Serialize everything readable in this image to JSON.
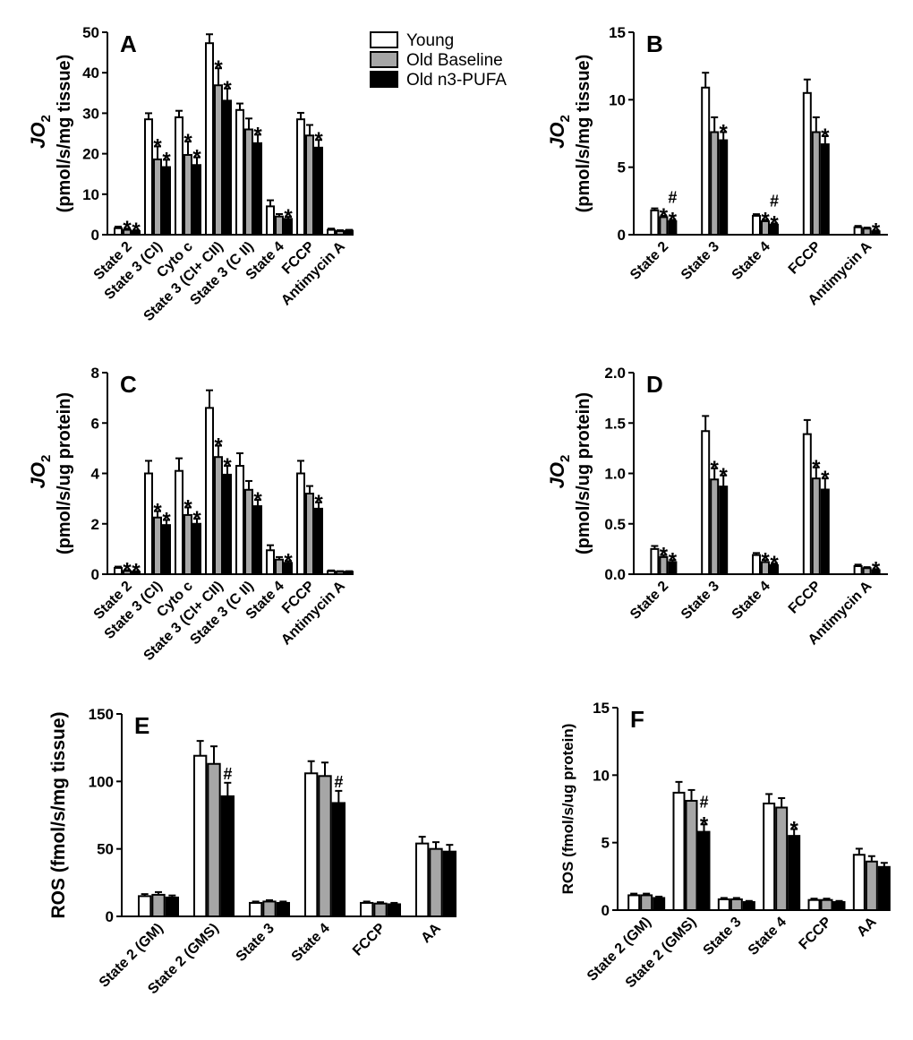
{
  "legend": {
    "entries": [
      {
        "name": "Young",
        "fill": "#ffffff"
      },
      {
        "name": "Old Baseline",
        "fill": "#a6a6a6"
      },
      {
        "name": "Old n3-PUFA",
        "fill": "#000000"
      }
    ]
  },
  "chart_data": [
    {
      "id": "A",
      "type": "bar",
      "panel_label": "A",
      "ylabel_main": "JO",
      "ylabel_sub": "2",
      "ylabel_units": "(pmol/s/mg tissue)",
      "ylim": [
        0,
        50
      ],
      "yticks": [
        0,
        10,
        20,
        30,
        40,
        50
      ],
      "categories": [
        "State 2",
        "State 3 (CI)",
        "Cyto c",
        "State 3 (CI+ CII)",
        "State 3 (C II)",
        "State 4",
        "FCCP",
        "Antimycin A"
      ],
      "series": [
        {
          "name": "Young",
          "values": [
            1.6,
            28.5,
            29.0,
            47.3,
            30.8,
            7.0,
            28.5,
            1.2
          ],
          "errors": [
            0.4,
            1.5,
            1.6,
            2.2,
            1.6,
            1.5,
            1.6,
            0.3
          ]
        },
        {
          "name": "Old Baseline",
          "values": [
            1.2,
            18.6,
            19.7,
            36.9,
            26.0,
            4.5,
            24.5,
            0.9
          ],
          "errors": [
            0.3,
            3.2,
            3.3,
            4.2,
            2.7,
            0.6,
            2.6,
            0.2
          ]
        },
        {
          "name": "Old n3-PUFA",
          "values": [
            0.9,
            16.7,
            17.2,
            33.1,
            22.6,
            3.9,
            21.5,
            1.0
          ],
          "errors": [
            0.2,
            1.8,
            1.9,
            3.0,
            2.1,
            0.5,
            1.9,
            0.2
          ]
        }
      ],
      "annotations": [
        {
          "cat": 0,
          "series": 1,
          "text": "*"
        },
        {
          "cat": 0,
          "series": 2,
          "text": "*"
        },
        {
          "cat": 1,
          "series": 1,
          "text": "*"
        },
        {
          "cat": 1,
          "series": 2,
          "text": "*"
        },
        {
          "cat": 2,
          "series": 1,
          "text": "*"
        },
        {
          "cat": 2,
          "series": 2,
          "text": "*"
        },
        {
          "cat": 3,
          "series": 1,
          "text": "*"
        },
        {
          "cat": 3,
          "series": 2,
          "text": "*"
        },
        {
          "cat": 4,
          "series": 2,
          "text": "*"
        },
        {
          "cat": 5,
          "series": 2,
          "text": "*"
        },
        {
          "cat": 6,
          "series": 2,
          "text": "*"
        }
      ]
    },
    {
      "id": "B",
      "type": "bar",
      "panel_label": "B",
      "ylabel_main": "JO",
      "ylabel_sub": "2",
      "ylabel_units": "(pmol/s/mg tissue)",
      "ylim": [
        0,
        15
      ],
      "yticks": [
        0,
        5,
        10,
        15
      ],
      "categories": [
        "State 2",
        "State 3",
        "State 4",
        "FCCP",
        "Antimycin A"
      ],
      "series": [
        {
          "name": "Young",
          "values": [
            1.8,
            10.9,
            1.4,
            10.5,
            0.55
          ],
          "errors": [
            0.15,
            1.1,
            0.12,
            1.0,
            0.1
          ]
        },
        {
          "name": "Old Baseline",
          "values": [
            1.3,
            7.6,
            1.0,
            7.6,
            0.45
          ],
          "errors": [
            0.1,
            1.1,
            0.1,
            1.1,
            0.08
          ]
        },
        {
          "name": "Old n3-PUFA",
          "values": [
            1.0,
            7.0,
            0.75,
            6.7,
            0.25
          ],
          "errors": [
            0.1,
            0.6,
            0.08,
            0.6,
            0.06
          ]
        }
      ],
      "annotations": [
        {
          "cat": 0,
          "series": 1,
          "text": "*"
        },
        {
          "cat": 0,
          "series": 2,
          "text": "*"
        },
        {
          "cat": 0,
          "series": 2,
          "text": "#"
        },
        {
          "cat": 1,
          "series": 2,
          "text": "*"
        },
        {
          "cat": 2,
          "series": 1,
          "text": "*"
        },
        {
          "cat": 2,
          "series": 2,
          "text": "*"
        },
        {
          "cat": 2,
          "series": 2,
          "text": "#"
        },
        {
          "cat": 3,
          "series": 2,
          "text": "*"
        },
        {
          "cat": 4,
          "series": 2,
          "text": "*"
        }
      ]
    },
    {
      "id": "C",
      "type": "bar",
      "panel_label": "C",
      "ylabel_main": "JO",
      "ylabel_sub": "2",
      "ylabel_units": "(pmol/s/ug protein)",
      "ylim": [
        0,
        8
      ],
      "yticks": [
        0,
        2,
        4,
        6,
        8
      ],
      "categories": [
        "State 2",
        "State 3 (CI)",
        "Cyto c",
        "State 3 (CI+ CII)",
        "State 3 (C II)",
        "State 4",
        "FCCP",
        "Antimycin A"
      ],
      "series": [
        {
          "name": "Young",
          "values": [
            0.25,
            4.0,
            4.1,
            6.6,
            4.3,
            0.95,
            4.0,
            0.12
          ],
          "errors": [
            0.05,
            0.5,
            0.5,
            0.7,
            0.5,
            0.2,
            0.5,
            0.03
          ]
        },
        {
          "name": "Old Baseline",
          "values": [
            0.13,
            2.25,
            2.35,
            4.65,
            3.35,
            0.58,
            3.2,
            0.1
          ],
          "errors": [
            0.03,
            0.25,
            0.3,
            0.45,
            0.35,
            0.1,
            0.3,
            0.02
          ]
        },
        {
          "name": "Old n3-PUFA",
          "values": [
            0.1,
            1.95,
            2.0,
            3.95,
            2.7,
            0.45,
            2.6,
            0.1
          ],
          "errors": [
            0.02,
            0.2,
            0.2,
            0.35,
            0.25,
            0.07,
            0.25,
            0.02
          ]
        }
      ],
      "annotations": [
        {
          "cat": 0,
          "series": 1,
          "text": "*"
        },
        {
          "cat": 0,
          "series": 2,
          "text": "*"
        },
        {
          "cat": 1,
          "series": 1,
          "text": "*"
        },
        {
          "cat": 1,
          "series": 2,
          "text": "*"
        },
        {
          "cat": 2,
          "series": 1,
          "text": "*"
        },
        {
          "cat": 2,
          "series": 2,
          "text": "*"
        },
        {
          "cat": 3,
          "series": 1,
          "text": "*"
        },
        {
          "cat": 3,
          "series": 2,
          "text": "*"
        },
        {
          "cat": 4,
          "series": 2,
          "text": "*"
        },
        {
          "cat": 5,
          "series": 2,
          "text": "*"
        },
        {
          "cat": 6,
          "series": 2,
          "text": "*"
        }
      ]
    },
    {
      "id": "D",
      "type": "bar",
      "panel_label": "D",
      "ylabel_main": "JO",
      "ylabel_sub": "2",
      "ylabel_units": "(pmol/s/ug protein)",
      "ylim": [
        0,
        2.0
      ],
      "yticks": [
        0.0,
        0.5,
        1.0,
        1.5,
        2.0
      ],
      "categories": [
        "State 2",
        "State 3",
        "State 4",
        "FCCP",
        "Antimycin A"
      ],
      "series": [
        {
          "name": "Young",
          "values": [
            0.25,
            1.42,
            0.19,
            1.39,
            0.08
          ],
          "errors": [
            0.03,
            0.15,
            0.02,
            0.14,
            0.015
          ]
        },
        {
          "name": "Old Baseline",
          "values": [
            0.17,
            0.94,
            0.12,
            0.95,
            0.06
          ],
          "errors": [
            0.02,
            0.11,
            0.02,
            0.11,
            0.01
          ]
        },
        {
          "name": "Old n3-PUFA",
          "values": [
            0.12,
            0.87,
            0.09,
            0.84,
            0.04
          ],
          "errors": [
            0.02,
            0.11,
            0.015,
            0.11,
            0.01
          ]
        }
      ],
      "annotations": [
        {
          "cat": 0,
          "series": 1,
          "text": "*"
        },
        {
          "cat": 0,
          "series": 2,
          "text": "*"
        },
        {
          "cat": 1,
          "series": 1,
          "text": "*"
        },
        {
          "cat": 1,
          "series": 2,
          "text": "*"
        },
        {
          "cat": 2,
          "series": 1,
          "text": "*"
        },
        {
          "cat": 2,
          "series": 2,
          "text": "*"
        },
        {
          "cat": 3,
          "series": 1,
          "text": "*"
        },
        {
          "cat": 3,
          "series": 2,
          "text": "*"
        },
        {
          "cat": 4,
          "series": 2,
          "text": "*"
        }
      ]
    },
    {
      "id": "E",
      "type": "bar",
      "panel_label": "E",
      "ylabel_main": "ROS (fmol/s/mg tissue)",
      "ylabel_sub": "",
      "ylabel_units": "",
      "ylim": [
        0,
        150
      ],
      "yticks": [
        0,
        50,
        100,
        150
      ],
      "categories": [
        "State 2 (GM)",
        "State 2 (GMS)",
        "State 3",
        "State 4",
        "FCCP",
        "AA"
      ],
      "series": [
        {
          "name": "Young",
          "values": [
            15,
            119,
            10,
            106,
            10,
            54
          ],
          "errors": [
            1.5,
            11,
            1,
            9,
            1,
            5
          ]
        },
        {
          "name": "Old Baseline",
          "values": [
            16,
            113,
            11,
            104,
            9.5,
            50
          ],
          "errors": [
            2,
            13,
            1,
            10,
            1,
            5
          ]
        },
        {
          "name": "Old n3-PUFA",
          "values": [
            14,
            89,
            10,
            84,
            9,
            48
          ],
          "errors": [
            1.5,
            10,
            1,
            9,
            1,
            5
          ]
        }
      ],
      "annotations": [
        {
          "cat": 1,
          "series": 2,
          "text": "#"
        },
        {
          "cat": 3,
          "series": 2,
          "text": "#"
        }
      ]
    },
    {
      "id": "F",
      "type": "bar",
      "panel_label": "F",
      "ylabel_main": "ROS (fmol/s/ug protein)",
      "ylabel_sub": "",
      "ylabel_units": "",
      "ylim": [
        0,
        15
      ],
      "yticks": [
        0,
        5,
        10,
        15
      ],
      "categories": [
        "State 2 (GM)",
        "State 2 (GMS)",
        "State 3",
        "State 4",
        "FCCP",
        "AA"
      ],
      "series": [
        {
          "name": "Young",
          "values": [
            1.1,
            8.7,
            0.8,
            7.9,
            0.75,
            4.1
          ],
          "errors": [
            0.12,
            0.8,
            0.1,
            0.7,
            0.1,
            0.45
          ]
        },
        {
          "name": "Old Baseline",
          "values": [
            1.1,
            8.1,
            0.8,
            7.6,
            0.75,
            3.6
          ],
          "errors": [
            0.12,
            0.8,
            0.1,
            0.7,
            0.1,
            0.4
          ]
        },
        {
          "name": "Old n3-PUFA",
          "values": [
            0.9,
            5.8,
            0.6,
            5.5,
            0.6,
            3.2
          ],
          "errors": [
            0.1,
            0.55,
            0.08,
            0.5,
            0.08,
            0.3
          ]
        }
      ],
      "annotations": [
        {
          "cat": 1,
          "series": 2,
          "text": "*"
        },
        {
          "cat": 1,
          "series": 2,
          "text": "#"
        },
        {
          "cat": 3,
          "series": 2,
          "text": "*"
        }
      ]
    }
  ]
}
